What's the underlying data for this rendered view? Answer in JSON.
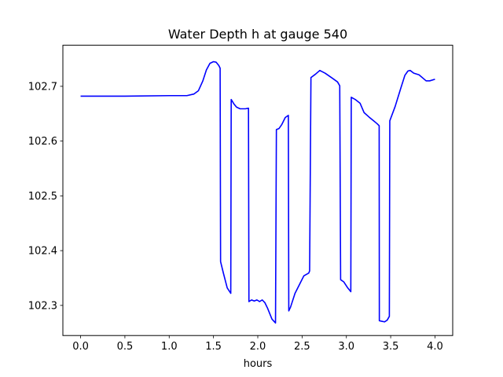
{
  "chart_data": {
    "type": "line",
    "title": "Water Depth h at gauge 540",
    "xlabel": "hours",
    "ylabel": "",
    "xlim": [
      -0.2,
      4.2
    ],
    "ylim": [
      102.245,
      102.775
    ],
    "xticks": [
      0.0,
      0.5,
      1.0,
      1.5,
      2.0,
      2.5,
      3.0,
      3.5,
      4.0
    ],
    "xtick_labels": [
      "0.0",
      "0.5",
      "1.0",
      "1.5",
      "2.0",
      "2.5",
      "3.0",
      "3.5",
      "4.0"
    ],
    "yticks": [
      102.3,
      102.4,
      102.5,
      102.6,
      102.7
    ],
    "ytick_labels": [
      "102.3",
      "102.4",
      "102.5",
      "102.6",
      "102.7"
    ],
    "grid": false,
    "legend": "none",
    "series": [
      {
        "color": "#0000ff",
        "x": [
          0.0,
          0.5,
          1.0,
          1.2,
          1.28,
          1.33,
          1.38,
          1.42,
          1.46,
          1.5,
          1.53,
          1.56,
          1.575,
          1.58,
          1.61,
          1.655,
          1.695,
          1.7,
          1.73,
          1.76,
          1.8,
          1.86,
          1.895,
          1.9,
          1.93,
          1.96,
          1.99,
          2.02,
          2.05,
          2.08,
          2.11,
          2.16,
          2.2,
          2.21,
          2.24,
          2.27,
          2.31,
          2.345,
          2.35,
          2.37,
          2.42,
          2.47,
          2.52,
          2.575,
          2.585,
          2.6,
          2.65,
          2.7,
          2.76,
          2.84,
          2.9,
          2.925,
          2.935,
          2.97,
          3.015,
          3.05,
          3.055,
          3.1,
          3.155,
          3.2,
          3.255,
          3.3,
          3.345,
          3.37,
          3.372,
          3.4,
          3.43,
          3.46,
          3.485,
          3.49,
          3.55,
          3.615,
          3.66,
          3.695,
          3.72,
          3.76,
          3.82,
          3.9,
          3.94,
          4.0
        ],
        "y": [
          102.682,
          102.682,
          102.683,
          102.683,
          102.686,
          102.692,
          102.71,
          102.73,
          102.742,
          102.745,
          102.744,
          102.738,
          102.733,
          102.38,
          102.36,
          102.332,
          102.322,
          102.676,
          102.668,
          102.662,
          102.659,
          102.659,
          102.66,
          102.307,
          102.31,
          102.308,
          102.31,
          102.307,
          102.31,
          102.305,
          102.295,
          102.275,
          102.268,
          102.621,
          102.623,
          102.63,
          102.643,
          102.647,
          102.29,
          102.297,
          102.322,
          102.338,
          102.354,
          102.359,
          102.363,
          102.716,
          102.722,
          102.729,
          102.724,
          102.715,
          102.708,
          102.701,
          102.347,
          102.343,
          102.332,
          102.325,
          102.68,
          102.676,
          102.669,
          102.652,
          102.644,
          102.638,
          102.632,
          102.628,
          102.272,
          102.271,
          102.27,
          102.273,
          102.28,
          102.637,
          102.663,
          102.697,
          102.72,
          102.728,
          102.729,
          102.724,
          102.721,
          102.71,
          102.71,
          102.713
        ]
      }
    ]
  }
}
